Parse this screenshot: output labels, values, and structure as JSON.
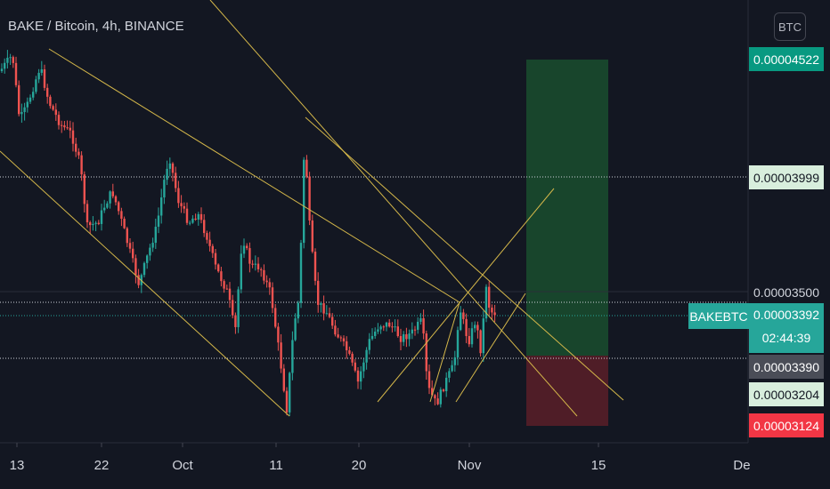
{
  "header": {
    "title": "BAKE / Bitcoin, 4h, BINANCE",
    "currency_button": "BTC"
  },
  "price_tags": {
    "target": "0.00004522",
    "level_3999": "0.00003999",
    "axis_3500": "0.00003500",
    "current_symbol": "BAKEBTC",
    "current_price": "0.00003392",
    "countdown": "02:44:39",
    "level_3390": "0.00003390",
    "level_3204": "0.00003204",
    "stop": "0.00003124"
  },
  "x_axis": {
    "labels": [
      "13",
      "22",
      "Oct",
      "11",
      "20",
      "Nov",
      "15",
      "De"
    ]
  },
  "colors": {
    "background": "#131722",
    "up": "#26a69a",
    "down": "#ef5350",
    "trendline": "#d4b74a",
    "target_zone": "#1a4d2e",
    "stop_zone": "#5a1f28",
    "target_tag": "#089981",
    "stop_tag": "#f23645"
  },
  "chart_data": {
    "type": "candlestick",
    "symbol": "BAKE / Bitcoin",
    "interval": "4h",
    "exchange": "BINANCE",
    "y_unit": "BTC",
    "ylim": [
      3.08e-05,
      4.68e-05
    ],
    "x_ticks": [
      "13",
      "22",
      "Oct",
      "11",
      "20",
      "Nov",
      "15",
      "De"
    ],
    "approx_close_path": [
      {
        "x": "Sep 13",
        "y": 4.45e-05
      },
      {
        "x": "Sep 16",
        "y": 4.2e-05
      },
      {
        "x": "Sep 22",
        "y": 3.9e-05
      },
      {
        "x": "Sep 27",
        "y": 3.82e-05
      },
      {
        "x": "Oct 1",
        "y": 4.05e-05
      },
      {
        "x": "Oct 5",
        "y": 3.7e-05
      },
      {
        "x": "Oct 9",
        "y": 3.4e-05
      },
      {
        "x": "Oct 11",
        "y": 3.1e-05
      },
      {
        "x": "Oct 13",
        "y": 3.95e-05
      },
      {
        "x": "Oct 15",
        "y": 3.45e-05
      },
      {
        "x": "Oct 19",
        "y": 3.28e-05
      },
      {
        "x": "Oct 23",
        "y": 3.45e-05
      },
      {
        "x": "Oct 27",
        "y": 3.4e-05
      },
      {
        "x": "Oct 29",
        "y": 3.13e-05
      },
      {
        "x": "Nov 1",
        "y": 3.45e-05
      },
      {
        "x": "Nov 3",
        "y": 3.4e-05
      },
      {
        "x": "Nov 4",
        "y": 3.39e-05
      }
    ],
    "levels": {
      "current": 3.392e-05,
      "target": 4.522e-05,
      "entry": 3.39e-05,
      "stop": 3.124e-05
    }
  }
}
